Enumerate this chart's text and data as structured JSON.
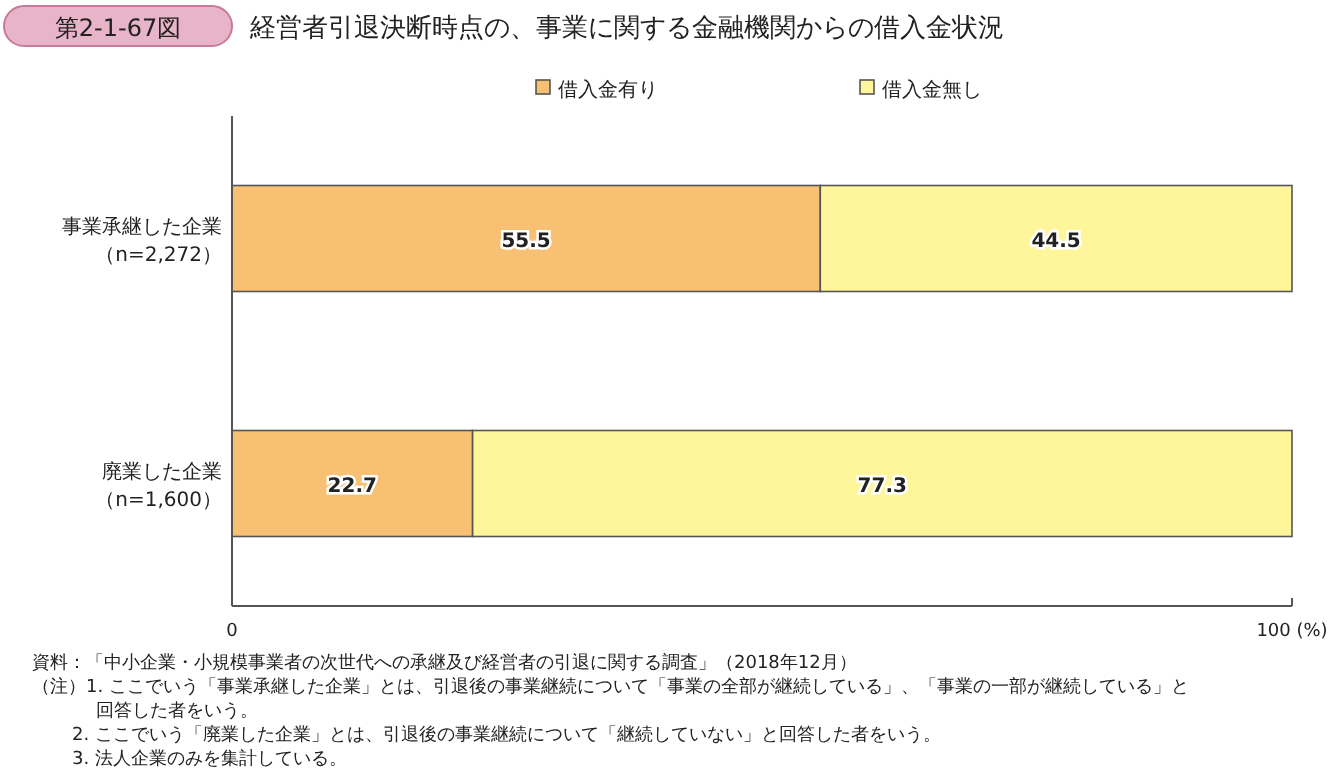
{
  "chart_data": {
    "type": "bar",
    "orientation": "horizontal",
    "stacked": true,
    "subtitle": "第2-1-67図",
    "title": "経営者引退決断時点の、事業に関する金融機関からの借入金状況",
    "categories": [
      "事業承継した企業（n=2,272）",
      "廃業した企業（n=1,600）"
    ],
    "series": [
      {
        "name": "借入金有り",
        "color": "#f7c073",
        "values": [
          55.5,
          22.7
        ]
      },
      {
        "name": "借入金無し",
        "color": "#fff59b",
        "values": [
          44.5,
          77.3
        ]
      }
    ],
    "xlim": [
      0,
      100
    ],
    "xticks": [
      0,
      {
        "value": 100,
        "label": "100 (%)"
      }
    ],
    "data_labels": true,
    "legend": "top",
    "grid": false,
    "annotations": [
      "資料：「中小企業・小規模事業者の次世代への承継及び経営者の引退に関する調査」（2018年12月）",
      "（注）1. ここでいう「事業承継した企業」とは、引退後の事業継続について「事業の全部が継続している」、「事業の一部が継続している」と回答した者をいう。",
      "2. ここでいう「廃業した企業」とは、引退後の事業継続について「継続していない」と回答した者をいう。",
      "3. 法人企業のみを集計している。"
    ]
  }
}
